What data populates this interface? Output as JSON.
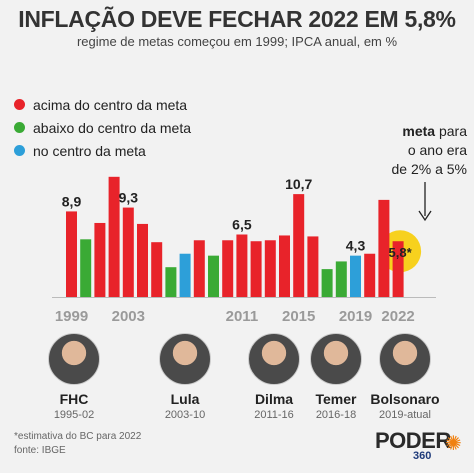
{
  "title": "INFLAÇÃO DEVE FECHAR 2022 EM 5,8%",
  "subtitle": "regime de metas começou em 1999; IPCA anual, em %",
  "legend": [
    {
      "label": "acima do centro da meta",
      "color": "#e8232a"
    },
    {
      "label": "abaixo do centro da meta",
      "color": "#3aaa35"
    },
    {
      "label": "no centro da meta",
      "color": "#2d9fd9"
    }
  ],
  "note": {
    "bold": "meta",
    "line1": "para",
    "line2": "o ano era",
    "line3": "de 2% a 5%"
  },
  "chart_data": {
    "type": "bar",
    "categories": [
      "1999",
      "2000",
      "2001",
      "2002",
      "2003",
      "2004",
      "2005",
      "2006",
      "2007",
      "2008",
      "2009",
      "2010",
      "2011",
      "2012",
      "2013",
      "2014",
      "2015",
      "2016",
      "2017",
      "2018",
      "2019",
      "2020",
      "2021",
      "2022"
    ],
    "values": [
      8.9,
      6.0,
      7.7,
      12.5,
      9.3,
      7.6,
      5.7,
      3.1,
      4.5,
      5.9,
      4.3,
      5.9,
      6.5,
      5.8,
      5.9,
      6.4,
      10.7,
      6.3,
      2.9,
      3.7,
      4.3,
      4.5,
      10.1,
      5.8
    ],
    "status": [
      "above",
      "below",
      "above",
      "above",
      "above",
      "above",
      "above",
      "below",
      "center",
      "above",
      "below",
      "above",
      "above",
      "above",
      "above",
      "above",
      "above",
      "above",
      "below",
      "below",
      "center",
      "above",
      "above",
      "above"
    ],
    "colors": {
      "above": "#e8232a",
      "below": "#3aaa35",
      "center": "#2d9fd9"
    },
    "data_labels": [
      {
        "index": 0,
        "text": "8,9"
      },
      {
        "index": 4,
        "text": "9,3"
      },
      {
        "index": 12,
        "text": "6,5"
      },
      {
        "index": 16,
        "text": "10,7"
      },
      {
        "index": 20,
        "text": "4,3"
      },
      {
        "index": 23,
        "text": "5,8*"
      }
    ],
    "x_tick_labels": [
      {
        "index": 0,
        "text": "1999"
      },
      {
        "index": 4,
        "text": "2003"
      },
      {
        "index": 12,
        "text": "2011"
      },
      {
        "index": 16,
        "text": "2015"
      },
      {
        "index": 20,
        "text": "2019"
      },
      {
        "index": 23,
        "text": "2022"
      }
    ],
    "highlight_index": 23,
    "highlight_color": "#f7d11e",
    "ylim": [
      0,
      13
    ]
  },
  "presidents": [
    {
      "name": "FHC",
      "term": "1995-02"
    },
    {
      "name": "Lula",
      "term": "2003-10"
    },
    {
      "name": "Dilma",
      "term": "2011-16"
    },
    {
      "name": "Temer",
      "term": "2016-18"
    },
    {
      "name": "Bolsonaro",
      "term": "2019-atual"
    }
  ],
  "footer": {
    "line1": "*estimativa do BC para 2022",
    "line2": "fonte: IBGE"
  },
  "logo": {
    "main": "PODER",
    "sub": "360"
  }
}
